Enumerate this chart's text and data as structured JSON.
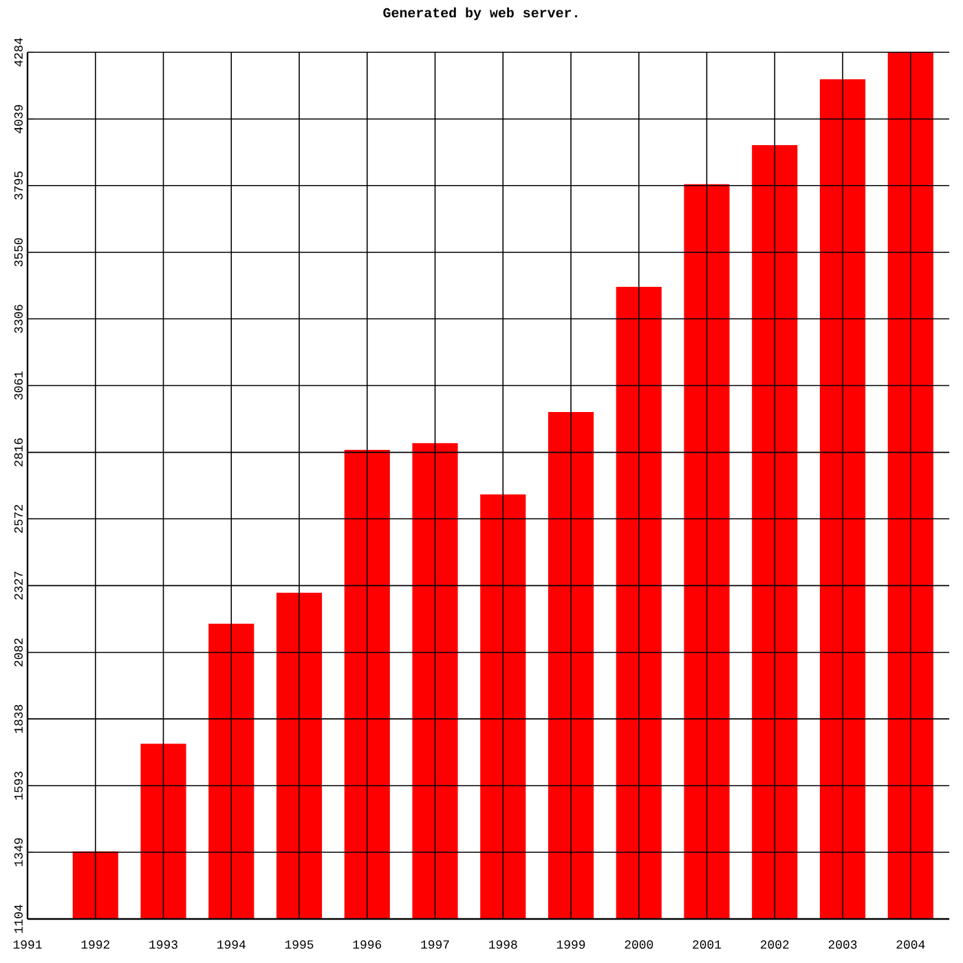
{
  "chart_data": {
    "type": "bar",
    "title": "Generated by web server.",
    "categories": [
      "1991",
      "1992",
      "1993",
      "1994",
      "1995",
      "1996",
      "1997",
      "1998",
      "1999",
      "2000",
      "2001",
      "2002",
      "2003",
      "2004"
    ],
    "values": [
      1104,
      1352,
      1747,
      2187,
      2301,
      2825,
      2850,
      2662,
      2964,
      3423,
      3800,
      3943,
      4185,
      4284
    ],
    "color": "#ff0000",
    "ylim": [
      1104,
      4284
    ],
    "yticks": [
      1104,
      1349,
      1593,
      1838,
      2082,
      2327,
      2572,
      2816,
      3061,
      3306,
      3550,
      3795,
      4039,
      4284
    ],
    "grid": true
  }
}
